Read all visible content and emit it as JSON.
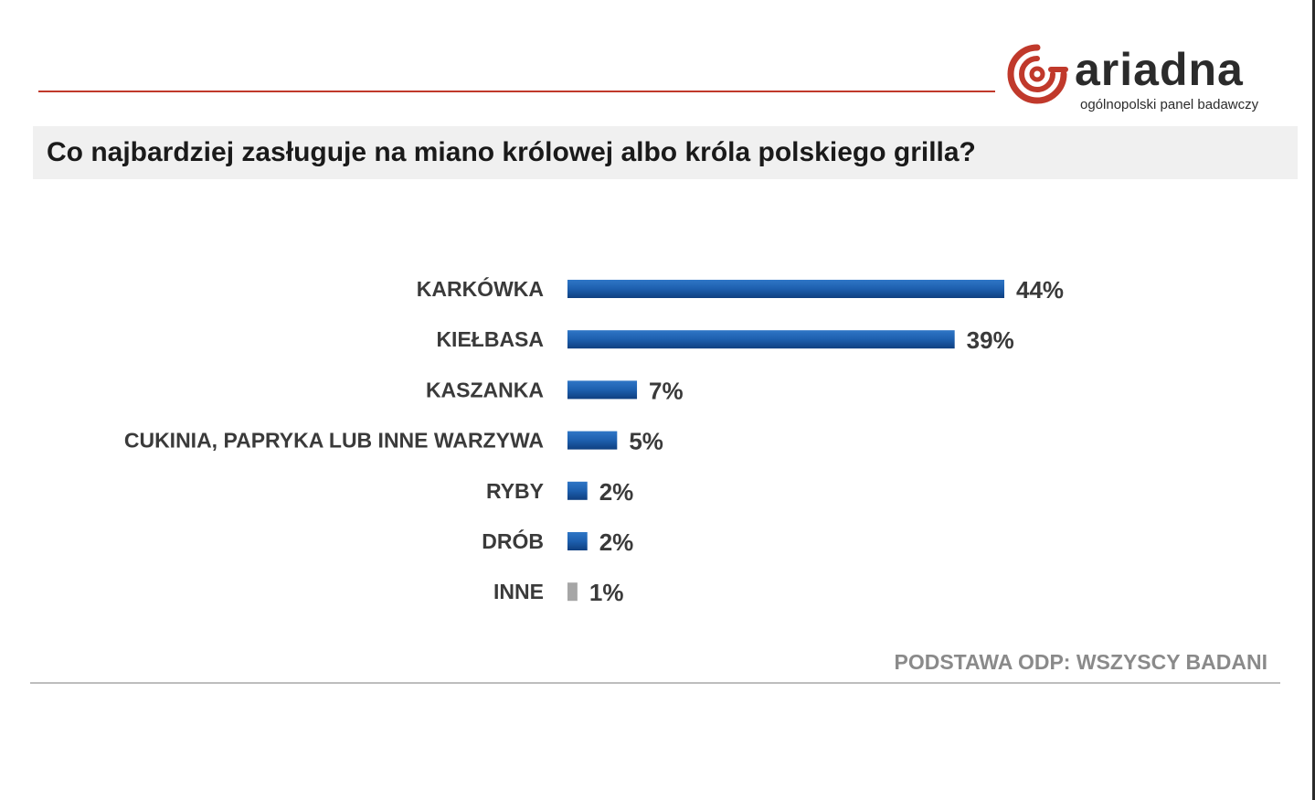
{
  "brand": {
    "name": "ariadna",
    "tagline": "ogólnopolski panel badawczy",
    "accent_color": "#c0392b"
  },
  "chart_data": {
    "type": "bar",
    "orientation": "horizontal",
    "title": "Co najbardziej zasługuje na miano królowej albo króla polskiego grilla?",
    "categories": [
      "KARKÓWKA",
      "KIEŁBASA",
      "KASZANKA",
      "CUKINIA, PAPRYKA LUB INNE WARZYWA",
      "RYBY",
      "DRÓB",
      "INNE"
    ],
    "values": [
      44,
      39,
      7,
      5,
      2,
      2,
      1
    ],
    "value_labels": [
      "44%",
      "39%",
      "7%",
      "5%",
      "2%",
      "2%",
      "1%"
    ],
    "unit": "%",
    "bar_colors": [
      "#1a5aa6",
      "#1a5aa6",
      "#1a5aa6",
      "#1a5aa6",
      "#1a5aa6",
      "#1a5aa6",
      "#a6a6a6"
    ],
    "xlim": [
      0,
      44
    ],
    "grid": false,
    "legend": "none"
  },
  "footnote": "PODSTAWA ODP: WSZYSCY BADANI"
}
